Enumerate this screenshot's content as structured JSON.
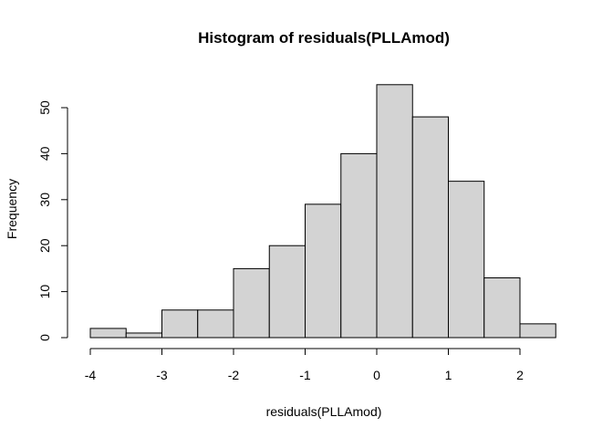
{
  "chart_data": {
    "type": "bar",
    "title": "Histogram of residuals(PLLAmod)",
    "xlabel": "residuals(PLLAmod)",
    "ylabel": "Frequency",
    "bins": [
      {
        "start": -4.0,
        "end": -3.5,
        "count": 2
      },
      {
        "start": -3.5,
        "end": -3.0,
        "count": 1
      },
      {
        "start": -3.0,
        "end": -2.5,
        "count": 6
      },
      {
        "start": -2.5,
        "end": -2.0,
        "count": 6
      },
      {
        "start": -2.0,
        "end": -1.5,
        "count": 15
      },
      {
        "start": -1.5,
        "end": -1.0,
        "count": 20
      },
      {
        "start": -1.0,
        "end": -0.5,
        "count": 29
      },
      {
        "start": -0.5,
        "end": 0.0,
        "count": 40
      },
      {
        "start": 0.0,
        "end": 0.5,
        "count": 55
      },
      {
        "start": 0.5,
        "end": 1.0,
        "count": 48
      },
      {
        "start": 1.0,
        "end": 1.5,
        "count": 34
      },
      {
        "start": 1.5,
        "end": 2.0,
        "count": 13
      },
      {
        "start": 2.0,
        "end": 2.5,
        "count": 3
      }
    ],
    "x_ticks": [
      -4,
      -3,
      -2,
      -1,
      0,
      1,
      2
    ],
    "y_ticks": [
      0,
      10,
      20,
      30,
      40,
      50
    ],
    "xlim": [
      -4,
      2.5
    ],
    "ylim": [
      0,
      55
    ],
    "grid": false,
    "bar_fill": "#d3d3d3",
    "bar_stroke": "#000000"
  }
}
